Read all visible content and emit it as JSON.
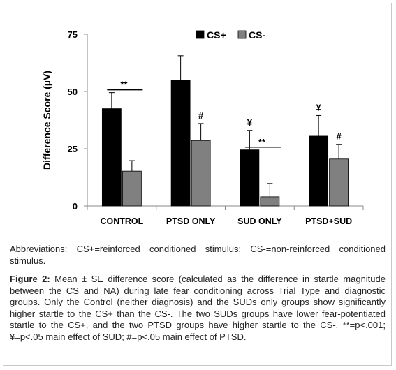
{
  "chart_data": {
    "type": "bar",
    "ylabel": "Difference Score  (µV)",
    "ylim": [
      0,
      75
    ],
    "yticks": [
      "0",
      "25",
      "50",
      "75"
    ],
    "categories": [
      "CONTROL",
      "PTSD ONLY",
      "SUD ONLY",
      "PTSD+SUD"
    ],
    "series": [
      {
        "name": "CS+",
        "color": "#000000",
        "values": [
          42.5,
          54.8,
          24.5,
          30.5
        ],
        "errors": [
          7.0,
          10.8,
          8.5,
          9.0
        ]
      },
      {
        "name": "CS-",
        "color": "#808080",
        "values": [
          15.2,
          28.6,
          4.0,
          20.5
        ],
        "errors": [
          4.6,
          7.4,
          5.8,
          6.4
        ]
      }
    ],
    "legend": "top-right",
    "annotations": [
      {
        "category": "CONTROL",
        "text": "**",
        "type": "bracket"
      },
      {
        "category": "SUD ONLY",
        "text": "**",
        "type": "bracket"
      },
      {
        "category": "PTSD ONLY",
        "series": "CS-",
        "text": "#"
      },
      {
        "category": "PTSD+SUD",
        "series": "CS-",
        "text": "#"
      },
      {
        "category": "SUD ONLY",
        "series": "CS+",
        "text": "¥"
      },
      {
        "category": "PTSD+SUD",
        "series": "CS+",
        "text": "¥"
      }
    ]
  },
  "abbreviations": "Abbreviations: CS+=reinforced conditioned stimulus; CS-=non-reinforced conditioned stimulus.",
  "caption": {
    "label": "Figure 2:",
    "text": " Mean ± SE difference score (calculated as the difference in startle magnitude between the CS and NA) during late fear conditioning across Trial Type and diagnostic groups. Only the Control (neither diagnosis) and the SUDs only groups show significantly higher startle to the CS+ than the CS-. The two SUDs groups have lower fear-potentiated startle to the CS+, and the two PTSD groups have higher startle to the CS-. **=p<.001; ¥=p<.05 main effect of SUD; #=p<.05 main effect of PTSD."
  }
}
